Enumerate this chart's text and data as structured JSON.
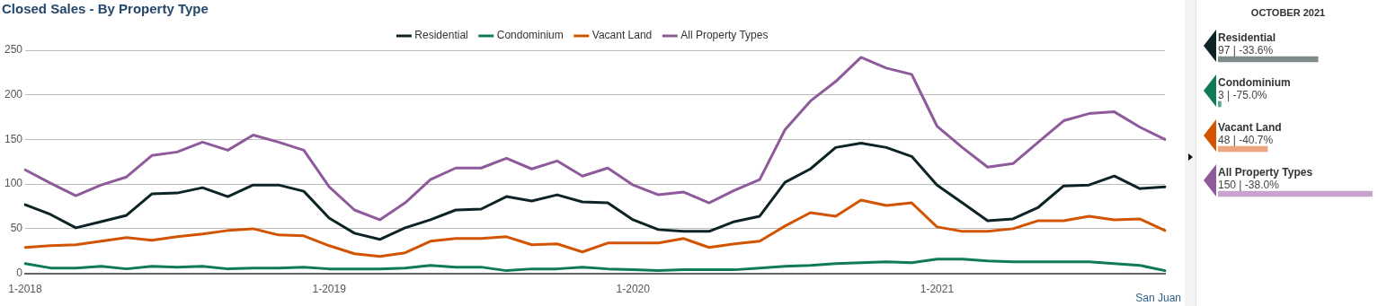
{
  "chart_data": [
    {
      "type": "line",
      "title": "Closed Sales - By Property Type",
      "categories": [
        "1-2018",
        null,
        null,
        null,
        null,
        null,
        null,
        null,
        null,
        null,
        null,
        null,
        "1-2019",
        null,
        null,
        null,
        null,
        null,
        null,
        null,
        null,
        null,
        null,
        null,
        "1-2020",
        null,
        null,
        null,
        null,
        null,
        null,
        null,
        null,
        null,
        null,
        null,
        "1-2021",
        null,
        null,
        null,
        null,
        null,
        null,
        null,
        null,
        null
      ],
      "series": [
        {
          "name": "Residential",
          "color": "#0d2326",
          "values": [
            77,
            66,
            51,
            58,
            65,
            89,
            90,
            96,
            86,
            99,
            99,
            92,
            62,
            45,
            38,
            51,
            60,
            71,
            72,
            86,
            81,
            88,
            80,
            79,
            60,
            49,
            47,
            47,
            58,
            64,
            102,
            117,
            141,
            146,
            141,
            131,
            99,
            79,
            59,
            61,
            74,
            98,
            99,
            109,
            95,
            97
          ]
        },
        {
          "name": "Condominium",
          "color": "#0f7a55",
          "values": [
            11,
            6,
            6,
            8,
            5,
            8,
            7,
            8,
            5,
            6,
            6,
            7,
            5,
            5,
            5,
            6,
            9,
            7,
            7,
            3,
            5,
            5,
            7,
            5,
            4,
            3,
            4,
            4,
            4,
            6,
            8,
            9,
            11,
            12,
            13,
            12,
            16,
            16,
            14,
            13,
            13,
            13,
            13,
            11,
            9,
            3
          ]
        },
        {
          "name": "Vacant Land",
          "color": "#d35400",
          "values": [
            29,
            31,
            32,
            36,
            40,
            37,
            41,
            44,
            48,
            50,
            43,
            42,
            31,
            22,
            19,
            23,
            36,
            39,
            39,
            41,
            32,
            33,
            24,
            34,
            34,
            34,
            39,
            29,
            33,
            36,
            53,
            68,
            64,
            82,
            76,
            79,
            52,
            47,
            47,
            50,
            59,
            59,
            64,
            60,
            61,
            48
          ]
        },
        {
          "name": "All Property Types",
          "color": "#8e5a9b",
          "values": [
            116,
            101,
            87,
            99,
            108,
            132,
            136,
            147,
            138,
            155,
            147,
            138,
            97,
            71,
            60,
            79,
            105,
            118,
            118,
            129,
            117,
            126,
            109,
            118,
            99,
            88,
            91,
            79,
            93,
            105,
            161,
            193,
            215,
            242,
            230,
            223,
            165,
            141,
            119,
            123,
            147,
            171,
            179,
            181,
            164,
            150
          ]
        }
      ],
      "ylim": [
        0,
        250
      ],
      "yticks": [
        0,
        50,
        100,
        150,
        200,
        250
      ],
      "grid": "y",
      "legend": "top",
      "annotations": [
        "San Juan"
      ]
    },
    {
      "type": "bar",
      "orientation": "horizontal",
      "title": "OCTOBER 2021",
      "categories": [
        "Residential",
        "Condominium",
        "Vacant Land",
        "All Property Types"
      ],
      "values": [
        97,
        3,
        48,
        150
      ],
      "value_labels": [
        "97 | -33.6%",
        "3 | -75.0%",
        "48 | -40.7%",
        "150 | -38.0%"
      ],
      "colors": [
        "#7f8b8a",
        "#5aa88a",
        "#eba57f",
        "#c9a3cf"
      ]
    }
  ]
}
